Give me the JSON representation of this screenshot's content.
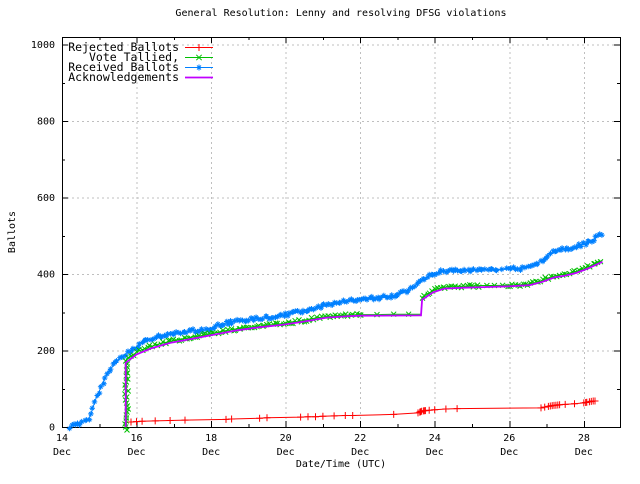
{
  "window": {
    "background": "#ffffff",
    "foreground": "#000000"
  },
  "chart_data": {
    "type": "line",
    "title": "General Resolution: Lenny and resolving DFSG violations",
    "xlabel": "Date/Time (UTC)",
    "ylabel": "Ballots",
    "x_unit": "day of December (UTC)",
    "xlim": [
      14,
      28.97
    ],
    "ylim": [
      0,
      1020
    ],
    "x_tick_major_days": [
      14,
      16,
      18,
      20,
      22,
      24,
      26,
      28
    ],
    "x_tick_minor_days": [
      15,
      17,
      19,
      21,
      23,
      25,
      27
    ],
    "x_tick_sublabel": "Dec",
    "y_ticks": [
      0,
      200,
      400,
      600,
      800,
      1000
    ],
    "y_tick_minor": [
      100,
      300,
      500,
      700,
      900
    ],
    "grid": {
      "show": true,
      "color": "#bfbfbf",
      "dash": "2,3"
    },
    "border_color": "#000000",
    "legend": {
      "position": "top-left"
    },
    "draw_order": [
      0,
      2,
      1,
      3
    ],
    "series": [
      {
        "name": "Rejected Ballots",
        "color": "#ff0000",
        "marker": "plus",
        "line_width": 1,
        "markers_at_points": true,
        "points": [
          [
            15.85,
            13
          ],
          [
            16.0,
            14
          ],
          [
            16.15,
            15
          ],
          [
            16.5,
            16
          ],
          [
            16.9,
            17
          ],
          [
            17.3,
            18
          ],
          [
            18.4,
            20
          ],
          [
            18.55,
            21
          ],
          [
            19.3,
            23
          ],
          [
            19.5,
            24
          ],
          [
            20.4,
            26
          ],
          [
            20.6,
            27
          ],
          [
            20.8,
            27
          ],
          [
            21.0,
            28
          ],
          [
            21.3,
            29
          ],
          [
            21.6,
            30
          ],
          [
            21.8,
            30
          ],
          [
            22.9,
            33
          ],
          [
            23.55,
            37
          ],
          [
            23.6,
            39
          ],
          [
            23.65,
            41
          ],
          [
            23.7,
            42
          ],
          [
            23.75,
            43
          ],
          [
            23.85,
            44
          ],
          [
            24.0,
            45
          ],
          [
            24.3,
            47
          ],
          [
            24.6,
            48
          ],
          [
            26.85,
            50
          ],
          [
            26.95,
            52
          ],
          [
            27.05,
            54
          ],
          [
            27.15,
            56
          ],
          [
            27.25,
            57
          ],
          [
            27.35,
            58
          ],
          [
            27.5,
            59
          ],
          [
            27.75,
            61
          ],
          [
            28.0,
            63
          ],
          [
            28.05,
            64
          ],
          [
            28.15,
            66
          ],
          [
            28.25,
            68
          ],
          [
            28.3,
            68
          ]
        ],
        "extra_marker_days": [
          23.62,
          23.72,
          27.1,
          27.2,
          27.3,
          28.08,
          28.2
        ],
        "dense_ranges": [],
        "dense_step": 0,
        "jitter": 0,
        "vbars": []
      },
      {
        "name": "Vote Tallied,",
        "color": "#00c000",
        "marker": "cross",
        "line_width": 1,
        "markers_at_points": false,
        "points": [
          [
            15.73,
            0
          ],
          [
            15.73,
            178
          ],
          [
            15.8,
            182
          ],
          [
            15.9,
            186
          ],
          [
            16.0,
            196
          ],
          [
            16.2,
            204
          ],
          [
            16.4,
            211
          ],
          [
            16.6,
            217
          ],
          [
            16.9,
            224
          ],
          [
            17.2,
            230
          ],
          [
            17.5,
            235
          ],
          [
            17.8,
            240
          ],
          [
            18.1,
            246
          ],
          [
            18.4,
            252
          ],
          [
            18.7,
            257
          ],
          [
            19.0,
            261
          ],
          [
            19.3,
            264
          ],
          [
            19.6,
            267
          ],
          [
            19.9,
            270
          ],
          [
            20.2,
            274
          ],
          [
            20.5,
            279
          ],
          [
            20.8,
            285
          ],
          [
            21.1,
            289
          ],
          [
            21.4,
            291
          ],
          [
            21.7,
            293
          ],
          [
            22.0,
            294
          ],
          [
            22.5,
            294
          ],
          [
            22.9,
            295
          ],
          [
            23.63,
            295
          ],
          [
            23.66,
            338
          ],
          [
            23.8,
            348
          ],
          [
            23.95,
            356
          ],
          [
            24.1,
            362
          ],
          [
            24.25,
            366
          ],
          [
            24.45,
            368
          ],
          [
            24.7,
            368
          ],
          [
            25.0,
            369
          ],
          [
            25.3,
            370
          ],
          [
            25.6,
            370
          ],
          [
            26.0,
            371
          ],
          [
            26.3,
            372
          ],
          [
            26.55,
            374
          ],
          [
            26.75,
            378
          ],
          [
            26.9,
            384
          ],
          [
            27.05,
            390
          ],
          [
            27.2,
            395
          ],
          [
            27.35,
            398
          ],
          [
            27.5,
            400
          ],
          [
            27.65,
            403
          ],
          [
            27.8,
            407
          ],
          [
            27.95,
            412
          ],
          [
            28.1,
            418
          ],
          [
            28.25,
            425
          ],
          [
            28.4,
            431
          ],
          [
            28.5,
            436
          ]
        ],
        "extra_marker_days": [
          22.45,
          22.9,
          23.3,
          25.4,
          25.6,
          25.82,
          26.44
        ],
        "dense_ranges": [
          [
            15.8,
            22.05
          ],
          [
            23.66,
            25.22
          ],
          [
            25.95,
            26.38
          ],
          [
            26.5,
            28.5
          ]
        ],
        "dense_step": 0.07,
        "jitter": 1.5,
        "vbars": [
          {
            "day": 15.73,
            "from": 0,
            "to": 178
          }
        ]
      },
      {
        "name": "Received Ballots",
        "color": "#0080ff",
        "marker": "star",
        "line_width": 1,
        "markers_at_points": false,
        "points": [
          [
            14.22,
            0
          ],
          [
            14.3,
            4
          ],
          [
            14.4,
            7
          ],
          [
            14.5,
            10
          ],
          [
            14.6,
            14
          ],
          [
            14.68,
            18
          ],
          [
            14.75,
            28
          ],
          [
            14.82,
            48
          ],
          [
            14.9,
            72
          ],
          [
            14.97,
            88
          ],
          [
            15.05,
            105
          ],
          [
            15.15,
            128
          ],
          [
            15.25,
            145
          ],
          [
            15.35,
            158
          ],
          [
            15.45,
            170
          ],
          [
            15.55,
            178
          ],
          [
            15.65,
            186
          ],
          [
            15.73,
            193
          ],
          [
            15.85,
            201
          ],
          [
            16.0,
            210
          ],
          [
            16.15,
            220
          ],
          [
            16.3,
            228
          ],
          [
            16.5,
            234
          ],
          [
            16.7,
            239
          ],
          [
            16.9,
            242
          ],
          [
            17.1,
            245
          ],
          [
            17.4,
            250
          ],
          [
            17.7,
            254
          ],
          [
            18.0,
            258
          ],
          [
            18.2,
            266
          ],
          [
            18.4,
            272
          ],
          [
            18.7,
            277
          ],
          [
            19.0,
            281
          ],
          [
            19.3,
            284
          ],
          [
            19.6,
            287
          ],
          [
            19.9,
            291
          ],
          [
            20.1,
            295
          ],
          [
            20.3,
            300
          ],
          [
            20.6,
            307
          ],
          [
            20.9,
            314
          ],
          [
            21.1,
            320
          ],
          [
            21.4,
            326
          ],
          [
            21.7,
            330
          ],
          [
            22.0,
            333
          ],
          [
            22.3,
            336
          ],
          [
            22.6,
            339
          ],
          [
            22.9,
            343
          ],
          [
            23.1,
            349
          ],
          [
            23.3,
            360
          ],
          [
            23.5,
            372
          ],
          [
            23.7,
            385
          ],
          [
            23.85,
            396
          ],
          [
            24.0,
            402
          ],
          [
            24.15,
            406
          ],
          [
            24.4,
            408
          ],
          [
            24.7,
            409
          ],
          [
            25.0,
            410
          ],
          [
            25.35,
            411
          ],
          [
            25.7,
            412
          ],
          [
            26.0,
            413
          ],
          [
            26.3,
            415
          ],
          [
            26.55,
            419
          ],
          [
            26.75,
            427
          ],
          [
            26.9,
            438
          ],
          [
            27.05,
            450
          ],
          [
            27.2,
            459
          ],
          [
            27.35,
            464
          ],
          [
            27.5,
            467
          ],
          [
            27.65,
            469
          ],
          [
            27.8,
            473
          ],
          [
            27.95,
            477
          ],
          [
            28.1,
            482
          ],
          [
            28.25,
            490
          ],
          [
            28.4,
            500
          ],
          [
            28.5,
            507
          ]
        ],
        "extra_marker_days": [
          25.45,
          25.8,
          26.42
        ],
        "dense_ranges": [
          [
            14.22,
            25.38
          ],
          [
            25.5,
            25.68
          ],
          [
            25.95,
            26.35
          ],
          [
            26.5,
            28.5
          ]
        ],
        "dense_step": 0.055,
        "jitter": 1.8,
        "vbars": []
      },
      {
        "name": "Acknowledgements",
        "color": "#c000ff",
        "marker": "none",
        "line_width": 1.8,
        "markers_at_points": false,
        "points": [
          [
            15.71,
            0
          ],
          [
            15.71,
            168
          ],
          [
            16.0,
            190
          ],
          [
            16.4,
            206
          ],
          [
            16.9,
            220
          ],
          [
            17.5,
            231
          ],
          [
            18.1,
            242
          ],
          [
            18.7,
            253
          ],
          [
            19.3,
            261
          ],
          [
            19.9,
            267
          ],
          [
            20.5,
            276
          ],
          [
            21.1,
            286
          ],
          [
            21.7,
            290
          ],
          [
            22.0,
            291
          ],
          [
            23.63,
            292
          ],
          [
            23.66,
            333
          ],
          [
            23.95,
            352
          ],
          [
            24.25,
            362
          ],
          [
            24.7,
            364
          ],
          [
            25.3,
            366
          ],
          [
            26.0,
            368
          ],
          [
            26.55,
            371
          ],
          [
            26.9,
            380
          ],
          [
            27.2,
            391
          ],
          [
            27.5,
            396
          ],
          [
            27.8,
            403
          ],
          [
            28.1,
            414
          ],
          [
            28.4,
            428
          ],
          [
            28.5,
            432
          ]
        ],
        "extra_marker_days": [],
        "dense_ranges": [],
        "dense_step": 0,
        "jitter": 0,
        "vbars": []
      }
    ]
  }
}
